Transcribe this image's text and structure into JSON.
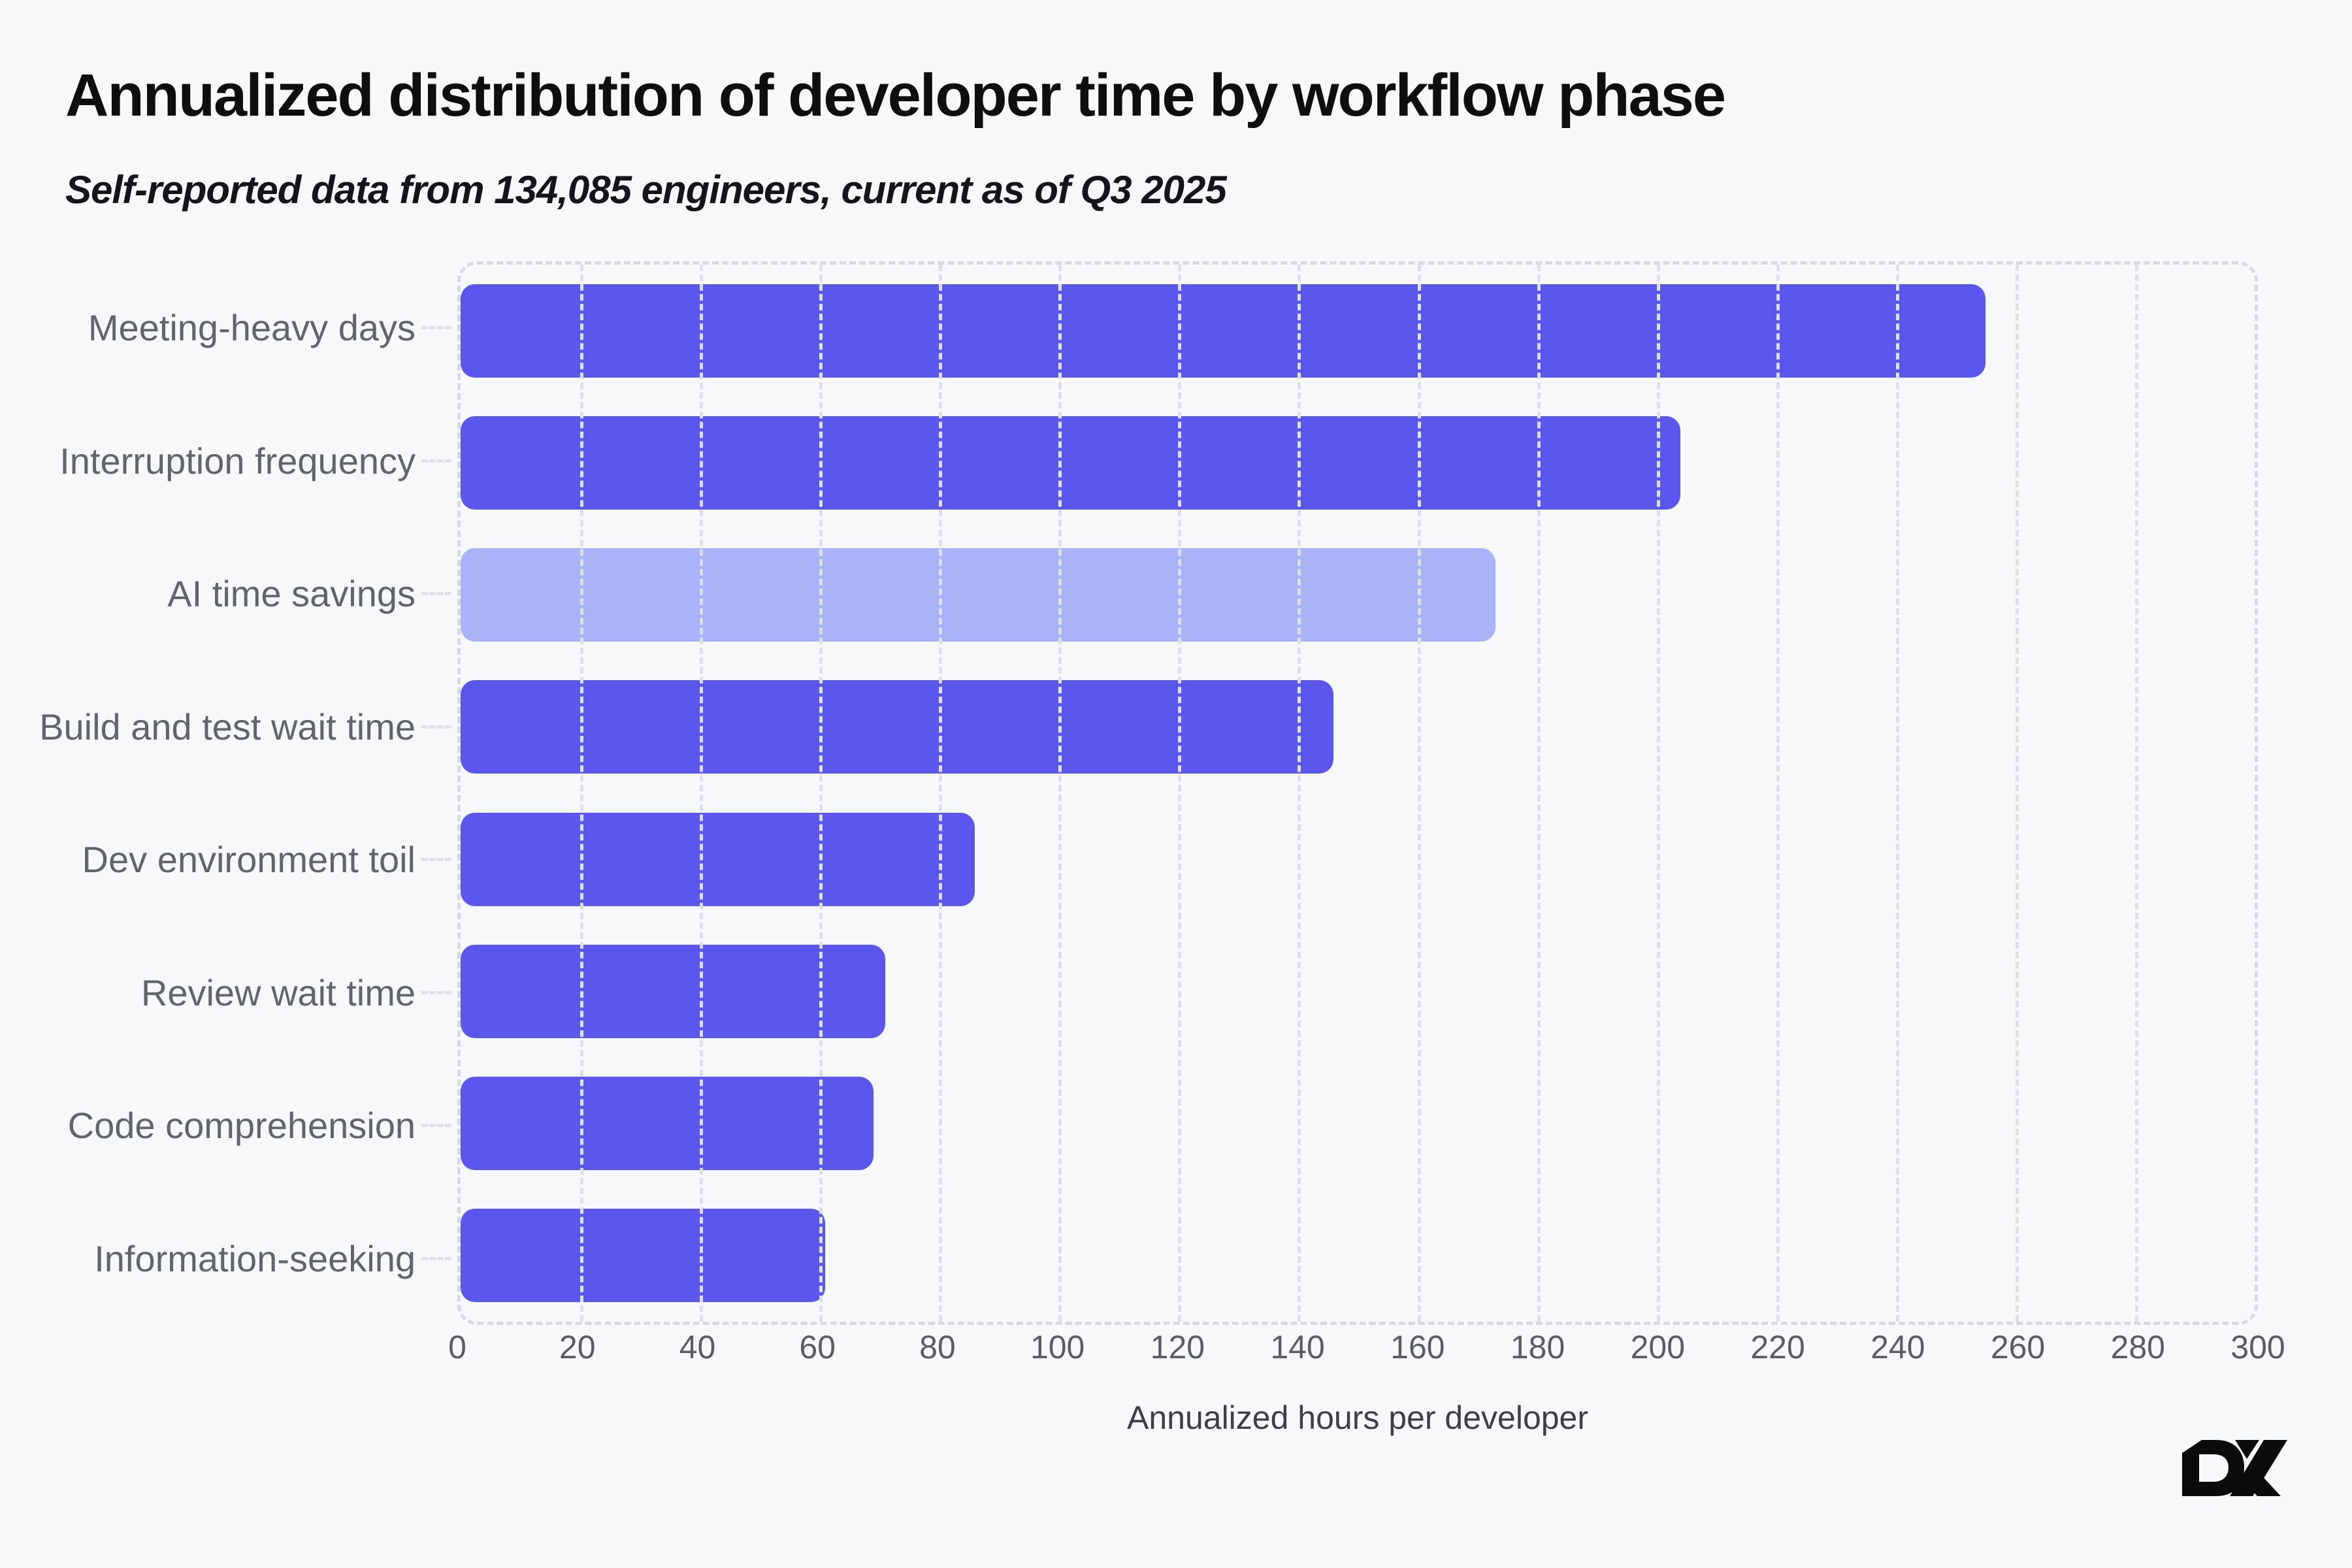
{
  "header": {
    "title": "Annualized distribution of developer time by workflow phase",
    "subtitle": "Self-reported data from 134,085 engineers, current as of Q3 2025"
  },
  "chart_data": {
    "type": "bar",
    "orientation": "horizontal",
    "title": "Annualized distribution of developer time by workflow phase",
    "subtitle": "Self-reported data from 134,085 engineers, current as of Q3 2025",
    "xlabel": "Annualized hours per developer",
    "xlim": [
      0,
      300
    ],
    "xticks": [
      0,
      20,
      40,
      60,
      80,
      100,
      120,
      140,
      160,
      180,
      200,
      220,
      240,
      260,
      280,
      300
    ],
    "grid": "vertical-dashed",
    "legend": "none",
    "categories": [
      "Meeting-heavy days",
      "Interruption frequency",
      "AI time savings",
      "Build and test wait time",
      "Dev environment toil",
      "Review wait time",
      "Code comprehension",
      "Information-seeking"
    ],
    "values": [
      255,
      204,
      173,
      146,
      86,
      71,
      69,
      61
    ],
    "highlight_index": 2,
    "highlighted_category": "AI time savings"
  },
  "colors": {
    "background": "#f7f8fa",
    "bar_primary": "#5b57ec",
    "bar_highlight": "#a9b4f8",
    "grid": "#dcdfe5",
    "frame": "#d6d9df",
    "axis_text": "#595d63",
    "category_text": "#60646b",
    "axis_title_text": "#3c3f45",
    "title_text": "#0d0e10",
    "logo": "#0b0b0c"
  },
  "branding": {
    "logo_text": "DX"
  }
}
